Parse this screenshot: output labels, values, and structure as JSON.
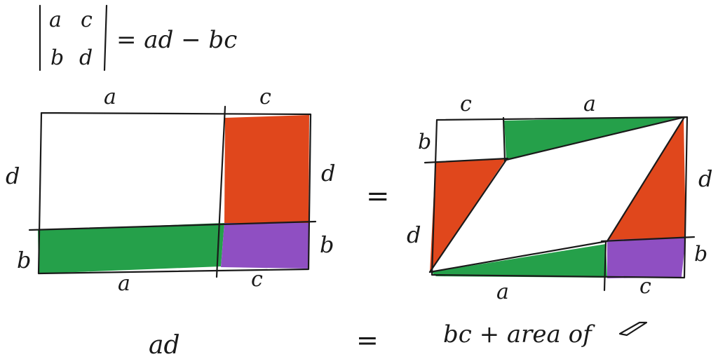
{
  "colors": {
    "red": "#e0471c",
    "green": "#25a04a",
    "purple": "#8f4fc2",
    "ink": "#1a1a1a"
  },
  "determinant": {
    "row1_col1": "a",
    "row1_col2": "c",
    "row2_col1": "b",
    "row2_col2": "d",
    "rhs": "= ad − bc"
  },
  "left_figure": {
    "top_label_a": "a",
    "top_label_c": "c",
    "left_label_d": "d",
    "left_label_b": "b",
    "right_label_d": "d",
    "right_label_b": "b",
    "bottom_label_a": "a",
    "bottom_label_c": "c"
  },
  "equals_mid": "=",
  "right_figure": {
    "top_label_c": "c",
    "top_label_a": "a",
    "left_label_b": "b",
    "left_label_d": "d",
    "right_label_d": "d",
    "right_label_b": "b",
    "bottom_label_a": "a",
    "bottom_label_c": "c"
  },
  "bottom": {
    "left_text": "ad",
    "equals": "=",
    "right_text": "bc + area of"
  }
}
